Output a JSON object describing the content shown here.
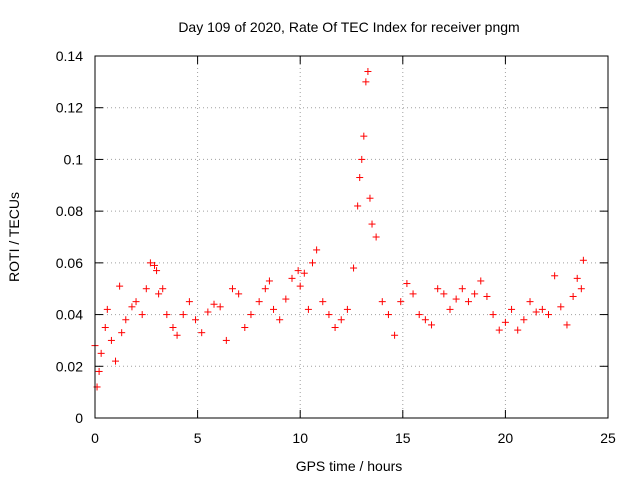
{
  "chart_data": {
    "type": "scatter",
    "title": "Day 109 of 2020, Rate Of TEC Index for receiver pngm",
    "xlabel": "GPS time / hours",
    "ylabel": "ROTI / TECUs",
    "xlim": [
      0,
      25
    ],
    "ylim": [
      0,
      0.14
    ],
    "xticks": [
      0,
      5,
      10,
      15,
      20,
      25
    ],
    "yticks": [
      0,
      0.02,
      0.04,
      0.06,
      0.08,
      0.1,
      0.12,
      0.14
    ],
    "xtick_labels": [
      "0",
      "5",
      "10",
      "15",
      "20",
      "25"
    ],
    "ytick_labels": [
      "0",
      "0.02",
      "0.04",
      "0.06",
      "0.08",
      "0.1",
      "0.12",
      "0.14"
    ],
    "grid": true,
    "marker": "+",
    "color": "#ff0000",
    "series": [
      {
        "name": "ROTI",
        "x": [
          0.0,
          0.1,
          0.2,
          0.3,
          0.5,
          0.6,
          0.8,
          1.0,
          1.2,
          1.3,
          1.5,
          1.8,
          2.0,
          2.3,
          2.5,
          2.7,
          2.9,
          3.0,
          3.1,
          3.3,
          3.5,
          3.8,
          4.0,
          4.3,
          4.6,
          4.9,
          5.2,
          5.5,
          5.8,
          6.1,
          6.4,
          6.7,
          7.0,
          7.3,
          7.6,
          8.0,
          8.3,
          8.5,
          8.7,
          9.0,
          9.3,
          9.6,
          9.9,
          10.0,
          10.2,
          10.4,
          10.6,
          10.8,
          11.1,
          11.4,
          11.7,
          12.0,
          12.3,
          12.6,
          12.8,
          12.9,
          13.0,
          13.1,
          13.2,
          13.3,
          13.4,
          13.5,
          13.7,
          14.0,
          14.3,
          14.6,
          14.9,
          15.2,
          15.5,
          15.8,
          16.1,
          16.4,
          16.7,
          17.0,
          17.3,
          17.6,
          17.9,
          18.2,
          18.5,
          18.8,
          19.1,
          19.4,
          19.7,
          20.0,
          20.3,
          20.6,
          20.9,
          21.2,
          21.5,
          21.8,
          22.1,
          22.4,
          22.7,
          23.0,
          23.3,
          23.5,
          23.7,
          23.8
        ],
        "y": [
          0.028,
          0.012,
          0.018,
          0.025,
          0.035,
          0.042,
          0.03,
          0.022,
          0.051,
          0.033,
          0.038,
          0.043,
          0.045,
          0.04,
          0.05,
          0.06,
          0.059,
          0.057,
          0.048,
          0.05,
          0.04,
          0.035,
          0.032,
          0.04,
          0.045,
          0.038,
          0.033,
          0.041,
          0.044,
          0.043,
          0.03,
          0.05,
          0.048,
          0.035,
          0.04,
          0.045,
          0.05,
          0.053,
          0.042,
          0.038,
          0.046,
          0.054,
          0.057,
          0.051,
          0.056,
          0.042,
          0.06,
          0.065,
          0.045,
          0.04,
          0.035,
          0.038,
          0.042,
          0.058,
          0.082,
          0.093,
          0.1,
          0.109,
          0.13,
          0.134,
          0.085,
          0.075,
          0.07,
          0.045,
          0.04,
          0.032,
          0.045,
          0.052,
          0.048,
          0.04,
          0.038,
          0.036,
          0.05,
          0.048,
          0.042,
          0.046,
          0.05,
          0.045,
          0.048,
          0.053,
          0.047,
          0.04,
          0.034,
          0.037,
          0.042,
          0.034,
          0.038,
          0.045,
          0.041,
          0.042,
          0.04,
          0.055,
          0.043,
          0.036,
          0.047,
          0.054,
          0.05,
          0.061
        ]
      }
    ]
  }
}
